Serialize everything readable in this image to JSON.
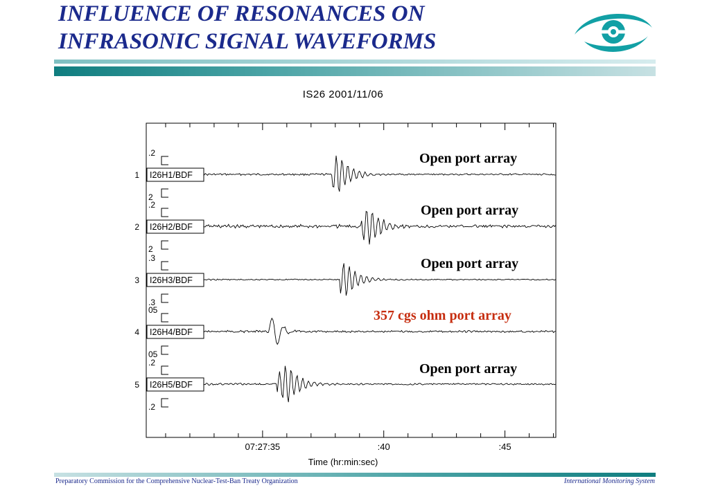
{
  "slide": {
    "title_line1": "INFLUENCE OF RESONANCES ON",
    "title_line2": "INFRASONIC SIGNAL WAVEFORMS",
    "logo_icon": "ctbto-eye-logo-icon",
    "accent_color": "#12a0a5",
    "title_color": "#1b2a8c",
    "footer_left": "Preparatory Commission for the Comprehensive Nuclear-Test-Ban Treaty Organization",
    "footer_right": "International Monitoring System"
  },
  "chart_data": {
    "type": "line",
    "title": "IS26  2001/11/06",
    "xlabel": "Time (hr:min:sec)",
    "x_ticks": [
      "07:27:35",
      ":40",
      ":45"
    ],
    "x_tick_seconds": [
      35,
      40,
      45
    ],
    "xlim_seconds": [
      30.2,
      47.1
    ],
    "grid": false,
    "series": [
      {
        "index": "1",
        "name": "I26H1/BDF",
        "scale_top": ".2",
        "scale_bottom": "2",
        "onset_seconds": 38.0,
        "peak_seconds": 38.1,
        "amplitude": 1.0,
        "noise": 0.12,
        "annotation": "Open port array",
        "annotation_color": "#000000"
      },
      {
        "index": "2",
        "name": "I26H2/BDF",
        "scale_top": ".2",
        "scale_bottom": "2",
        "onset_seconds": 39.2,
        "peak_seconds": 39.35,
        "amplitude": 1.0,
        "noise": 0.22,
        "annotation": "Open port array",
        "annotation_color": "#000000"
      },
      {
        "index": "3",
        "name": "I26H3/BDF",
        "scale_top": ".3",
        "scale_bottom": ".3",
        "onset_seconds": 38.3,
        "peak_seconds": 38.4,
        "amplitude": 0.9,
        "noise": 0.08,
        "annotation": "Open port array",
        "annotation_color": "#000000"
      },
      {
        "index": "4",
        "name": "I26H4/BDF",
        "scale_top": "05",
        "scale_bottom": "05",
        "onset_seconds": 35.4,
        "peak_seconds": 35.5,
        "amplitude": 1.0,
        "noise": 0.14,
        "annotation": "357 cgs ohm port array",
        "annotation_color": "#c62d0f"
      },
      {
        "index": "5",
        "name": "I26H5/BDF",
        "scale_top": ".2",
        "scale_bottom": ".2",
        "onset_seconds": 35.7,
        "peak_seconds": 36.0,
        "amplitude": 1.0,
        "noise": 0.12,
        "annotation": "Open port array",
        "annotation_color": "#000000"
      }
    ]
  }
}
